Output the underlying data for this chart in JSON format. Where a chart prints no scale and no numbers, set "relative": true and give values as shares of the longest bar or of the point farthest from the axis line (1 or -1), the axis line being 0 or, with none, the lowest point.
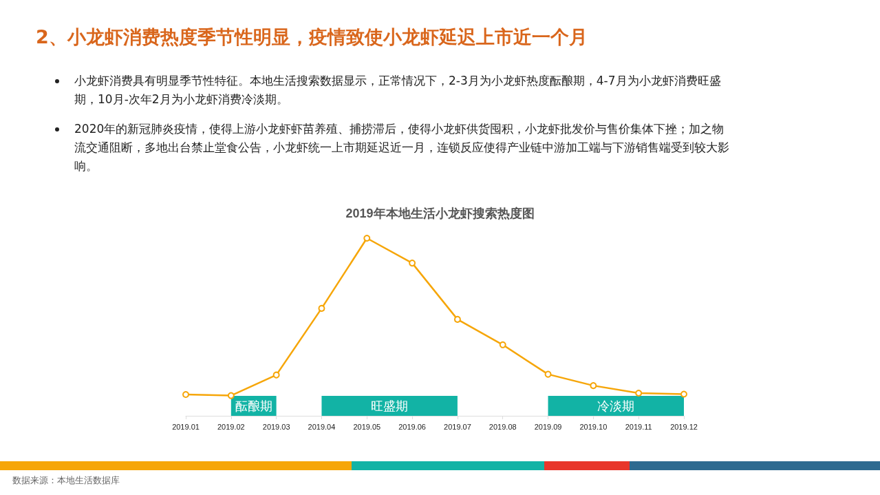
{
  "chart_data": {
    "type": "line",
    "title": "2019年本地生活小龙虾搜索热度图",
    "categories": [
      "2019.01",
      "2019.02",
      "2019.03",
      "2019.04",
      "2019.05",
      "2019.06",
      "2019.07",
      "2019.08",
      "2019.09",
      "2019.10",
      "2019.11",
      "2019.12"
    ],
    "series": [
      {
        "color": "#f6a609",
        "values": [
          0.12,
          0.114,
          0.23,
          0.605,
          1,
          0.86,
          0.543,
          0.4,
          0.234,
          0.17,
          0.128,
          0.122
        ]
      }
    ],
    "relative": true,
    "marker": "circle",
    "bands": [
      {
        "axis": "x",
        "from": "2019.02",
        "to": "2019.03",
        "label": "酝酿期",
        "color": "#12b3a5"
      },
      {
        "axis": "x",
        "from": "2019.04",
        "to": "2019.07",
        "label": "旺盛期",
        "color": "#12b3a5"
      },
      {
        "axis": "x",
        "from": "2019.09",
        "to": "2019.12",
        "label": "冷淡期",
        "color": "#12b3a5"
      }
    ],
    "subtitle": "2、小龙虾消费热度季节性明显，疫情致使小龙虾延迟上市近一个月",
    "annotations": [
      "小龙虾消费具有明显季节性特征。本地生活搜索数据显示，正常情况下，2-3月为小龙虾热度酝酿期，4-7月为小龙虾消费旺盛期，10月-次年2月为小龙虾消费冷淡期。",
      "2020年的新冠肺炎疫情，使得上游小龙虾虾苗养殖、捕捞滞后，使得小龙虾供货囤积，小龙虾批发价与售价集体下挫；加之物流交通阻断，多地出台禁止堂食公告，小龙虾统一上市期延迟近一月，连锁反应使得产业链中游加工端与下游销售端受到较大影响。",
      "数据来源：本地生活数据库"
    ]
  }
}
